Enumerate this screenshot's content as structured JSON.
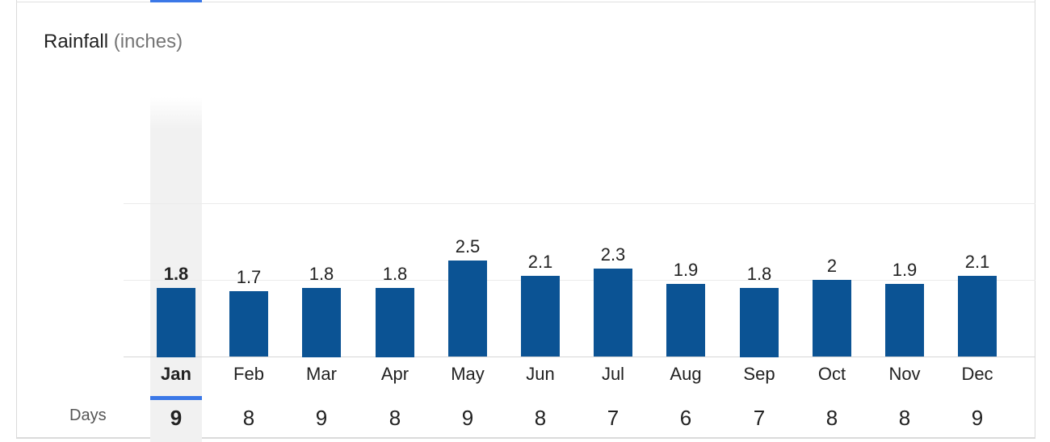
{
  "header": {
    "title": "Rainfall",
    "unit": "(inches)"
  },
  "days_label": "Days",
  "selected_index": 0,
  "colors": {
    "bar": "#0b5394",
    "accent": "#3b78e7"
  },
  "chart_data": {
    "type": "bar",
    "title": "Rainfall (inches)",
    "categories": [
      "Jan",
      "Feb",
      "Mar",
      "Apr",
      "May",
      "Jun",
      "Jul",
      "Aug",
      "Sep",
      "Oct",
      "Nov",
      "Dec"
    ],
    "values": [
      1.8,
      1.7,
      1.8,
      1.8,
      2.5,
      2.1,
      2.3,
      1.9,
      1.8,
      2,
      1.9,
      2.1
    ],
    "value_labels": [
      "1.8",
      "1.7",
      "1.8",
      "1.8",
      "2.5",
      "2.1",
      "2.3",
      "1.9",
      "1.8",
      "2",
      "1.9",
      "2.1"
    ],
    "days": [
      "9",
      "8",
      "9",
      "8",
      "9",
      "8",
      "7",
      "6",
      "7",
      "8",
      "8",
      "9"
    ],
    "ylim": [
      0,
      6
    ],
    "grid": true
  }
}
